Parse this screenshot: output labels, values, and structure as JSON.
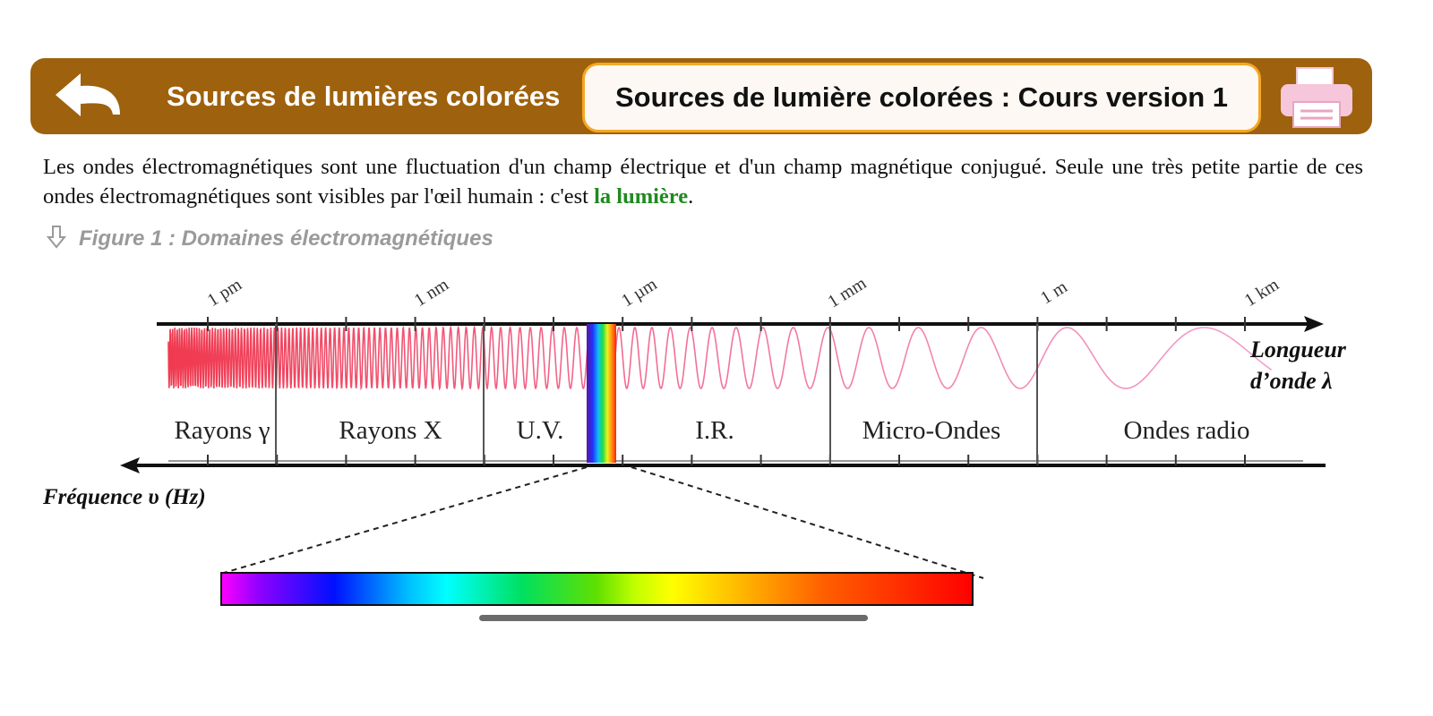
{
  "header": {
    "back_title": "Sources de lumières colorées",
    "page_title": "Sources de lumière colorées : Cours version 1"
  },
  "paragraph": {
    "text_before": "Les ondes électromagnétiques sont une fluctuation d'un champ électrique et d'un champ magnétique conjugué. Seule une très petite partie de ces ondes électromagnétiques sont visibles par l'œil humain : c'est ",
    "highlight": "la lumière",
    "text_after": "."
  },
  "figure": {
    "caption": "Figure 1 : Domaines électromagnétiques",
    "wavelength_ticks": [
      "1 pm",
      "1 nm",
      "1 µm",
      "1 mm",
      "1 m",
      "1 km"
    ],
    "domains": [
      "Rayons γ",
      "Rayons X",
      "U.V.",
      "I.R.",
      "Micro-Ondes",
      "Ondes radio"
    ],
    "wavelength_label": [
      "Longueur",
      "d’onde λ"
    ],
    "frequency_label": "Fréquence υ (Hz)"
  }
}
